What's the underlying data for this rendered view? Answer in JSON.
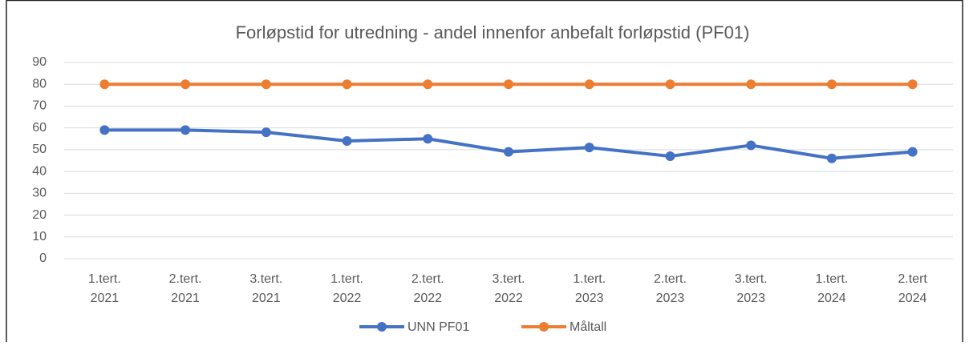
{
  "chart_data": {
    "type": "line",
    "title": "Forløpstid for utredning - andel innenfor anbefalt forløpstid (PF01)",
    "categories": [
      "1.tert.\n2021",
      "2.tert.\n2021",
      "3.tert.\n2021",
      "1.tert.\n2022",
      "2.tert.\n2022",
      "3.tert.\n2022",
      "1.tert.\n2023",
      "2.tert.\n2023",
      "3.tert.\n2023",
      "1.tert.\n2024",
      "2.tert\n2024"
    ],
    "series": [
      {
        "name": "UNN PF01",
        "color": "#4472c4",
        "values": [
          59,
          59,
          58,
          54,
          55,
          49,
          51,
          47,
          52,
          46,
          49
        ]
      },
      {
        "name": "Måltall",
        "color": "#ed7d31",
        "values": [
          80,
          80,
          80,
          80,
          80,
          80,
          80,
          80,
          80,
          80,
          80
        ]
      }
    ],
    "ylim": [
      0,
      90
    ],
    "yticks": [
      0,
      10,
      20,
      30,
      40,
      50,
      60,
      70,
      80,
      90
    ],
    "grid": true,
    "legend": "bottom"
  }
}
